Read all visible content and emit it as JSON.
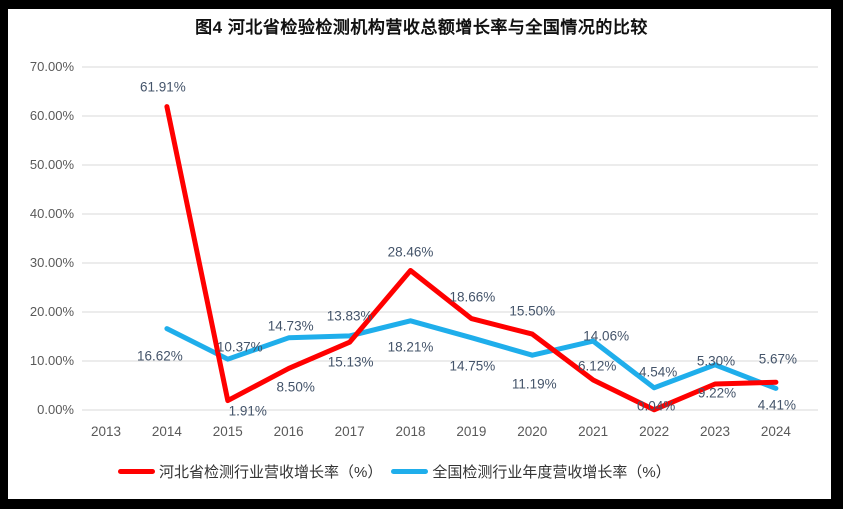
{
  "title": "图4 河北省检验检测机构营收总额增长率与全国情况的比较",
  "colors": {
    "hebei": "#FF0000",
    "national": "#1FAEEB",
    "gridline": "#D9D9D9",
    "axis_text": "#595959",
    "data_label_text": "#44546A",
    "frame": "#000000",
    "panel": "#FFFFFF"
  },
  "chart_data": {
    "type": "line",
    "title": "图4 河北省检验检测机构营收总额增长率与全国情况的比较",
    "categories": [
      "2013",
      "2014",
      "2015",
      "2016",
      "2017",
      "2018",
      "2019",
      "2020",
      "2021",
      "2022",
      "2023",
      "2024"
    ],
    "series": [
      {
        "name": "河北省检测行业营收增长率（%）",
        "color_key": "hebei",
        "start_year": "2014",
        "values": [
          61.91,
          1.91,
          8.5,
          13.83,
          28.46,
          18.66,
          15.5,
          6.12,
          0.04,
          5.3,
          5.67
        ],
        "labels": [
          "61.91%",
          "1.91%",
          "8.50%",
          "13.83%",
          "28.46%",
          "18.66%",
          "15.50%",
          "6.12%",
          "0.04%",
          "5.30%",
          "5.67%"
        ]
      },
      {
        "name": "全国检测行业年度营收增长率（%）",
        "color_key": "national",
        "start_year": "2014",
        "values": [
          16.62,
          10.37,
          14.73,
          15.13,
          18.21,
          14.75,
          11.19,
          14.06,
          4.54,
          9.22,
          4.41
        ],
        "labels": [
          "16.62%",
          "10.37%",
          "14.73%",
          "15.13%",
          "18.21%",
          "14.75%",
          "11.19%",
          "14.06%",
          "4.54%",
          "9.22%",
          "4.41%"
        ]
      }
    ],
    "ylim": [
      0,
      70
    ],
    "ytick_labels": [
      "0.00%",
      "10.00%",
      "20.00%",
      "30.00%",
      "40.00%",
      "50.00%",
      "60.00%",
      "70.00%"
    ],
    "xlabel": "",
    "ylabel": "",
    "grid": true,
    "legend_position": "bottom"
  }
}
